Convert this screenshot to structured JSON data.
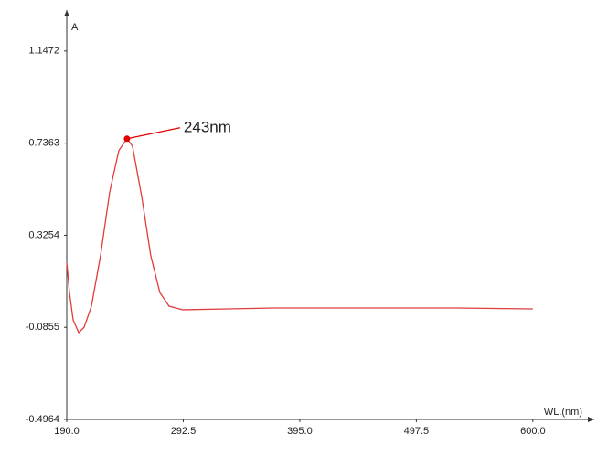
{
  "chart_data": {
    "type": "line",
    "x_label": "WL.(nm)",
    "y_label": "A",
    "x": [
      190,
      192.4,
      195.6,
      200.5,
      205.3,
      211.7,
      219.7,
      227.8,
      235.8,
      243,
      247.8,
      255.9,
      263.9,
      271.9,
      280,
      292,
      332.3,
      372.5,
      452.9,
      533.3,
      600
    ],
    "series": [
      {
        "color": "#e03c3c",
        "values": [
          0.205,
          0.07,
          -0.052,
          -0.109,
          -0.085,
          0.009,
          0.234,
          0.519,
          0.703,
          0.756,
          0.723,
          0.499,
          0.234,
          0.07,
          0.009,
          -0.007,
          -0.003,
          0.001,
          0.001,
          0.001,
          -0.003
        ]
      }
    ],
    "annotation": {
      "text": "243nm",
      "x": 243,
      "y": 0.756,
      "color": "#e00000"
    },
    "xlim": [
      190,
      654
    ],
    "ylim": [
      -0.4964,
      1.33
    ],
    "xticks": [
      {
        "value": 190,
        "label": "190.0"
      },
      292.5,
      {
        "value": 395,
        "label": "395.0"
      },
      497.5,
      {
        "value": 600,
        "label": "600.0"
      }
    ],
    "yticks": [
      -0.4964,
      -0.0855,
      0.3254,
      0.7363,
      1.1472
    ]
  }
}
